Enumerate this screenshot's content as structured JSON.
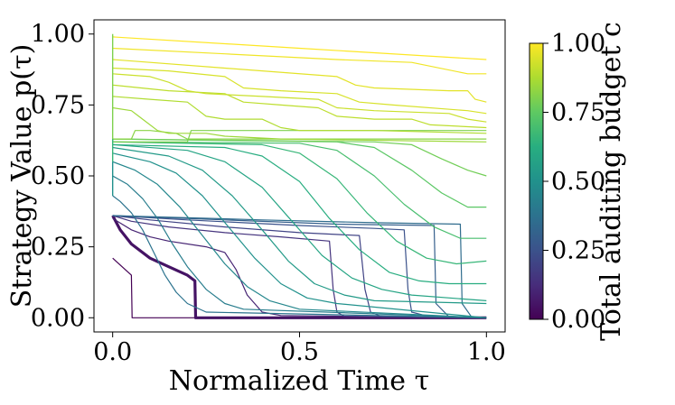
{
  "chart_data": {
    "type": "line",
    "xlabel": "Normalized Time τ",
    "ylabel": "Strategy Value p(τ)",
    "xlim": [
      -0.05,
      1.05
    ],
    "ylim": [
      -0.05,
      1.05
    ],
    "x_ticks": [
      {
        "value": 0.0,
        "label": "0.0"
      },
      {
        "value": 0.5,
        "label": "0.5"
      },
      {
        "value": 1.0,
        "label": "1.0"
      }
    ],
    "y_ticks": [
      {
        "value": 0.0,
        "label": "0.00"
      },
      {
        "value": 0.25,
        "label": "0.25"
      },
      {
        "value": 0.5,
        "label": "0.50"
      },
      {
        "value": 0.75,
        "label": "0.75"
      },
      {
        "value": 1.0,
        "label": "1.00"
      }
    ],
    "colorbar": {
      "label": "Total auditing budget c",
      "range": [
        0.0,
        1.0
      ],
      "colormap": "viridis",
      "ticks": [
        {
          "value": 0.0,
          "label": "0.00"
        },
        {
          "value": 0.25,
          "label": "0.25"
        },
        {
          "value": 0.5,
          "label": "0.50"
        },
        {
          "value": 0.75,
          "label": "0.75"
        },
        {
          "value": 1.0,
          "label": "1.00"
        }
      ]
    },
    "series": [
      {
        "name": "c=0.00",
        "c": 0.0,
        "width": 1.2,
        "points": [
          [
            0,
            0.21
          ],
          [
            0.05,
            0.15
          ],
          [
            0.052,
            0.0
          ],
          [
            1,
            0.0
          ]
        ]
      },
      {
        "name": "c=0.05",
        "c": 0.05,
        "width": 3.2,
        "points": [
          [
            0,
            0.36
          ],
          [
            0.02,
            0.31
          ],
          [
            0.05,
            0.26
          ],
          [
            0.1,
            0.21
          ],
          [
            0.15,
            0.18
          ],
          [
            0.2,
            0.15
          ],
          [
            0.22,
            0.13
          ],
          [
            0.222,
            0.0
          ],
          [
            1,
            0.0
          ]
        ]
      },
      {
        "name": "c=0.10",
        "c": 0.1,
        "width": 1.2,
        "points": [
          [
            0,
            0.35
          ],
          [
            0.05,
            0.31
          ],
          [
            0.1,
            0.285
          ],
          [
            0.15,
            0.27
          ],
          [
            0.25,
            0.25
          ],
          [
            0.3,
            0.23
          ],
          [
            0.33,
            0.17
          ],
          [
            0.36,
            0.08
          ],
          [
            0.4,
            0.02
          ],
          [
            0.45,
            0.008
          ],
          [
            1,
            0.0
          ]
        ]
      },
      {
        "name": "c=0.15",
        "c": 0.15,
        "width": 1.2,
        "points": [
          [
            0,
            0.36
          ],
          [
            0.05,
            0.34
          ],
          [
            0.15,
            0.32
          ],
          [
            0.3,
            0.3
          ],
          [
            0.45,
            0.285
          ],
          [
            0.58,
            0.27
          ],
          [
            0.59,
            0.1
          ],
          [
            0.6,
            0.02
          ],
          [
            0.62,
            0.005
          ],
          [
            1,
            0.0
          ]
        ]
      },
      {
        "name": "c=0.20",
        "c": 0.2,
        "width": 1.2,
        "points": [
          [
            0,
            0.36
          ],
          [
            0.1,
            0.345
          ],
          [
            0.3,
            0.32
          ],
          [
            0.5,
            0.3
          ],
          [
            0.66,
            0.29
          ],
          [
            0.675,
            0.1
          ],
          [
            0.69,
            0.02
          ],
          [
            0.72,
            0.004
          ],
          [
            1,
            0.0
          ]
        ]
      },
      {
        "name": "c=0.25",
        "c": 0.25,
        "width": 1.2,
        "points": [
          [
            0,
            0.36
          ],
          [
            0.2,
            0.345
          ],
          [
            0.5,
            0.325
          ],
          [
            0.7,
            0.315
          ],
          [
            0.78,
            0.31
          ],
          [
            0.79,
            0.1
          ],
          [
            0.8,
            0.02
          ],
          [
            0.85,
            0.003
          ],
          [
            1,
            0.0
          ]
        ]
      },
      {
        "name": "c=0.30",
        "c": 0.3,
        "width": 1.2,
        "points": [
          [
            0,
            0.36
          ],
          [
            0.3,
            0.345
          ],
          [
            0.6,
            0.33
          ],
          [
            0.86,
            0.325
          ],
          [
            0.865,
            0.05
          ],
          [
            0.9,
            0.003
          ],
          [
            1,
            0.0
          ]
        ]
      },
      {
        "name": "c=0.35",
        "c": 0.35,
        "width": 1.2,
        "points": [
          [
            0,
            0.36
          ],
          [
            0.4,
            0.345
          ],
          [
            0.7,
            0.335
          ],
          [
            0.93,
            0.33
          ],
          [
            0.935,
            0.05
          ],
          [
            0.96,
            0.003
          ],
          [
            1,
            0.0
          ]
        ]
      },
      {
        "name": "c=0.38",
        "c": 0.38,
        "width": 1.2,
        "points": [
          [
            0,
            0.43
          ],
          [
            0.02,
            0.41
          ],
          [
            0.05,
            0.37
          ],
          [
            0.08,
            0.31
          ],
          [
            0.11,
            0.23
          ],
          [
            0.14,
            0.15
          ],
          [
            0.17,
            0.09
          ],
          [
            0.2,
            0.05
          ],
          [
            0.25,
            0.02
          ],
          [
            1,
            0.0
          ]
        ]
      },
      {
        "name": "c=0.42",
        "c": 0.42,
        "width": 1.2,
        "points": [
          [
            0,
            0.5
          ],
          [
            0.04,
            0.47
          ],
          [
            0.08,
            0.42
          ],
          [
            0.12,
            0.35
          ],
          [
            0.16,
            0.26
          ],
          [
            0.2,
            0.18
          ],
          [
            0.25,
            0.1
          ],
          [
            0.3,
            0.05
          ],
          [
            0.35,
            0.03
          ],
          [
            1,
            0.0
          ]
        ]
      },
      {
        "name": "c=0.46",
        "c": 0.46,
        "width": 1.2,
        "points": [
          [
            0,
            0.55
          ],
          [
            0.06,
            0.52
          ],
          [
            0.12,
            0.47
          ],
          [
            0.18,
            0.39
          ],
          [
            0.24,
            0.29
          ],
          [
            0.3,
            0.19
          ],
          [
            0.36,
            0.11
          ],
          [
            0.42,
            0.06
          ],
          [
            0.5,
            0.03
          ],
          [
            1,
            0.0
          ]
        ]
      },
      {
        "name": "c=0.50",
        "c": 0.5,
        "width": 1.2,
        "points": [
          [
            0,
            0.58
          ],
          [
            0.1,
            0.55
          ],
          [
            0.17,
            0.51
          ],
          [
            0.24,
            0.43
          ],
          [
            0.31,
            0.32
          ],
          [
            0.38,
            0.21
          ],
          [
            0.45,
            0.12
          ],
          [
            0.52,
            0.07
          ],
          [
            0.6,
            0.05
          ],
          [
            1,
            0.0
          ]
        ]
      },
      {
        "name": "c=0.54",
        "c": 0.54,
        "width": 1.2,
        "points": [
          [
            0,
            0.6
          ],
          [
            0.15,
            0.57
          ],
          [
            0.24,
            0.52
          ],
          [
            0.32,
            0.43
          ],
          [
            0.4,
            0.31
          ],
          [
            0.47,
            0.2
          ],
          [
            0.54,
            0.12
          ],
          [
            0.62,
            0.08
          ],
          [
            0.7,
            0.06
          ],
          [
            1,
            0.05
          ]
        ]
      },
      {
        "name": "c=0.58",
        "c": 0.58,
        "width": 1.2,
        "points": [
          [
            0,
            0.61
          ],
          [
            0.2,
            0.59
          ],
          [
            0.3,
            0.55
          ],
          [
            0.4,
            0.46
          ],
          [
            0.48,
            0.34
          ],
          [
            0.56,
            0.22
          ],
          [
            0.64,
            0.14
          ],
          [
            0.72,
            0.1
          ],
          [
            0.8,
            0.08
          ],
          [
            1,
            0.06
          ]
        ]
      },
      {
        "name": "c=0.62",
        "c": 0.62,
        "width": 1.2,
        "points": [
          [
            0,
            0.61
          ],
          [
            0.3,
            0.6
          ],
          [
            0.4,
            0.57
          ],
          [
            0.5,
            0.48
          ],
          [
            0.58,
            0.35
          ],
          [
            0.66,
            0.24
          ],
          [
            0.74,
            0.16
          ],
          [
            0.82,
            0.13
          ],
          [
            0.9,
            0.12
          ],
          [
            1,
            0.12
          ]
        ]
      },
      {
        "name": "c=0.66",
        "c": 0.66,
        "width": 1.2,
        "points": [
          [
            0,
            0.62
          ],
          [
            0.4,
            0.61
          ],
          [
            0.5,
            0.58
          ],
          [
            0.6,
            0.49
          ],
          [
            0.68,
            0.37
          ],
          [
            0.76,
            0.27
          ],
          [
            0.84,
            0.21
          ],
          [
            0.92,
            0.19
          ],
          [
            1,
            0.2
          ]
        ]
      },
      {
        "name": "c=0.70",
        "c": 0.7,
        "width": 1.2,
        "points": [
          [
            0,
            0.62
          ],
          [
            0.5,
            0.615
          ],
          [
            0.6,
            0.59
          ],
          [
            0.7,
            0.5
          ],
          [
            0.78,
            0.4
          ],
          [
            0.86,
            0.32
          ],
          [
            0.93,
            0.28
          ],
          [
            1,
            0.28
          ]
        ]
      },
      {
        "name": "c=0.74",
        "c": 0.74,
        "width": 1.2,
        "points": [
          [
            0,
            0.63
          ],
          [
            0.6,
            0.62
          ],
          [
            0.7,
            0.6
          ],
          [
            0.8,
            0.52
          ],
          [
            0.88,
            0.44
          ],
          [
            0.95,
            0.39
          ],
          [
            1,
            0.39
          ]
        ]
      },
      {
        "name": "c=0.78",
        "c": 0.78,
        "width": 1.2,
        "points": [
          [
            0,
            0.63
          ],
          [
            0.7,
            0.62
          ],
          [
            0.8,
            0.61
          ],
          [
            0.88,
            0.56
          ],
          [
            0.95,
            0.52
          ],
          [
            1,
            0.5
          ]
        ]
      },
      {
        "name": "c=0.80",
        "c": 0.8,
        "width": 1.2,
        "points": [
          [
            0,
            0.62
          ],
          [
            0.2,
            0.62
          ],
          [
            0.21,
            0.66
          ],
          [
            0.35,
            0.66
          ],
          [
            1,
            0.66
          ]
        ]
      },
      {
        "name": "c=0.82",
        "c": 0.82,
        "width": 1.2,
        "points": [
          [
            0,
            0.63
          ],
          [
            0.05,
            0.63
          ],
          [
            0.06,
            0.66
          ],
          [
            0.1,
            0.66
          ],
          [
            0.17,
            0.65
          ],
          [
            0.2,
            0.63
          ],
          [
            0.25,
            0.63
          ],
          [
            1,
            0.63
          ]
        ]
      },
      {
        "name": "c=0.85",
        "c": 0.85,
        "width": 1.2,
        "points": [
          [
            0,
            0.74
          ],
          [
            0.05,
            0.73
          ],
          [
            0.08,
            0.7
          ],
          [
            0.12,
            0.66
          ],
          [
            0.15,
            0.65
          ],
          [
            0.25,
            0.65
          ],
          [
            0.3,
            0.64
          ],
          [
            0.45,
            0.63
          ],
          [
            1,
            0.62
          ]
        ]
      },
      {
        "name": "c=0.88",
        "c": 0.88,
        "width": 1.2,
        "points": [
          [
            0,
            0.78
          ],
          [
            0.1,
            0.77
          ],
          [
            0.2,
            0.76
          ],
          [
            0.25,
            0.71
          ],
          [
            0.3,
            0.7
          ],
          [
            0.4,
            0.7
          ],
          [
            0.45,
            0.67
          ],
          [
            0.5,
            0.66
          ],
          [
            0.7,
            0.66
          ],
          [
            1,
            0.65
          ]
        ]
      },
      {
        "name": "c=0.90",
        "c": 0.9,
        "width": 1.2,
        "points": [
          [
            0,
            0.82
          ],
          [
            0.15,
            0.8
          ],
          [
            0.3,
            0.79
          ],
          [
            0.35,
            0.76
          ],
          [
            0.45,
            0.75
          ],
          [
            0.55,
            0.74
          ],
          [
            0.6,
            0.71
          ],
          [
            0.7,
            0.7
          ],
          [
            0.8,
            0.7
          ],
          [
            0.85,
            0.68
          ],
          [
            1,
            0.67
          ]
        ]
      },
      {
        "name": "c=0.92",
        "c": 0.92,
        "width": 1.2,
        "points": [
          [
            0,
            0.86
          ],
          [
            0.1,
            0.85
          ],
          [
            0.15,
            0.83
          ],
          [
            0.2,
            0.8
          ],
          [
            0.25,
            0.79
          ],
          [
            0.4,
            0.78
          ],
          [
            0.55,
            0.77
          ],
          [
            0.6,
            0.74
          ],
          [
            0.7,
            0.73
          ],
          [
            0.9,
            0.72
          ],
          [
            0.95,
            0.7
          ],
          [
            1,
            0.69
          ]
        ]
      },
      {
        "name": "c=0.94",
        "c": 0.94,
        "width": 1.2,
        "points": [
          [
            0,
            0.88
          ],
          [
            0.15,
            0.87
          ],
          [
            0.3,
            0.85
          ],
          [
            0.35,
            0.81
          ],
          [
            0.45,
            0.8
          ],
          [
            0.6,
            0.79
          ],
          [
            0.66,
            0.76
          ],
          [
            0.75,
            0.75
          ],
          [
            0.95,
            0.73
          ],
          [
            1,
            0.72
          ]
        ]
      },
      {
        "name": "c=0.96",
        "c": 0.96,
        "width": 1.2,
        "points": [
          [
            0,
            0.91
          ],
          [
            0.3,
            0.88
          ],
          [
            0.6,
            0.85
          ],
          [
            0.65,
            0.82
          ],
          [
            0.7,
            0.81
          ],
          [
            0.9,
            0.8
          ],
          [
            0.95,
            0.8
          ],
          [
            0.97,
            0.77
          ],
          [
            1,
            0.76
          ]
        ]
      },
      {
        "name": "c=0.98",
        "c": 0.98,
        "width": 1.2,
        "points": [
          [
            0,
            0.95
          ],
          [
            0.3,
            0.93
          ],
          [
            0.6,
            0.91
          ],
          [
            0.8,
            0.9
          ],
          [
            0.95,
            0.86
          ],
          [
            1,
            0.86
          ]
        ]
      },
      {
        "name": "c=1.00",
        "c": 1.0,
        "width": 1.2,
        "points": [
          [
            0,
            0.99
          ],
          [
            0.5,
            0.95
          ],
          [
            1,
            0.91
          ]
        ]
      }
    ],
    "vertical_jumps_at_tau_zero": [
      {
        "c": 0.8,
        "from": 0.62,
        "to": 1.0
      },
      {
        "c": 0.66,
        "from": 0.55,
        "to": 0.63
      },
      {
        "c": 0.5,
        "from": 0.43,
        "to": 0.55
      }
    ]
  }
}
